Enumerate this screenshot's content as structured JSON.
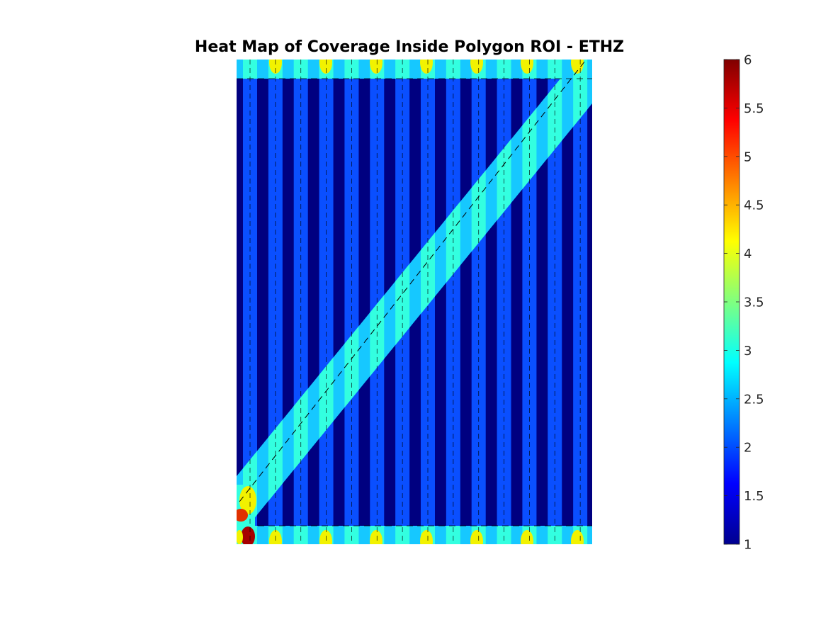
{
  "chart_data": {
    "type": "heatmap",
    "title": "Heat Map of Coverage Inside Polygon ROI - ETHZ",
    "xlabel": "",
    "ylabel": "",
    "colormap": "jet",
    "clim": [
      1,
      6
    ],
    "colorbar": {
      "ticks": [
        1,
        1.5,
        2,
        2.5,
        3,
        3.5,
        4,
        4.5,
        5,
        5.5,
        6
      ],
      "tick_labels": [
        "1",
        "1.5",
        "2",
        "2.5",
        "3",
        "3.5",
        "4",
        "4.5",
        "5",
        "5.5",
        "6"
      ],
      "placement": "right"
    },
    "stripes": {
      "count": 14,
      "background_value": 1,
      "stripe_value": 2
    },
    "diagonal_band_value": 3,
    "edge_strip_value": 3,
    "edge_spot_value": 4,
    "corner_hotspot_value": 6,
    "dashed_flight_lines": true
  },
  "colors": {
    "dark": "#000080",
    "stripe": "#0a4fff",
    "band": "#33ffe0",
    "band_edge": "#16c8ff",
    "spot": "#f2f200",
    "hot": "#e03000",
    "hotter": "#a60000"
  }
}
